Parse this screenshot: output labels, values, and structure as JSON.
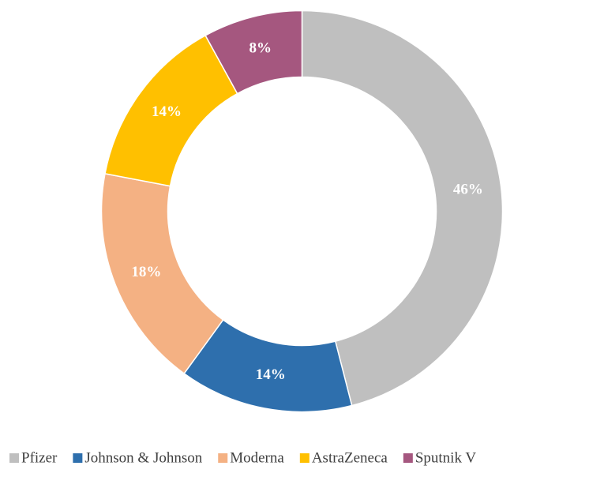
{
  "chart_data": {
    "type": "donut",
    "categories": [
      "Pfizer",
      "Johnson & Johnson",
      "Moderna",
      "AstraZeneca",
      "Sputnik V"
    ],
    "values": [
      46,
      14,
      18,
      14,
      8
    ],
    "value_labels": [
      "46%",
      "14%",
      "18%",
      "14%",
      "8%"
    ],
    "colors": [
      "#bfbfbf",
      "#2e6fad",
      "#f4b183",
      "#ffc000",
      "#a5577f"
    ],
    "legend": "bottom"
  }
}
